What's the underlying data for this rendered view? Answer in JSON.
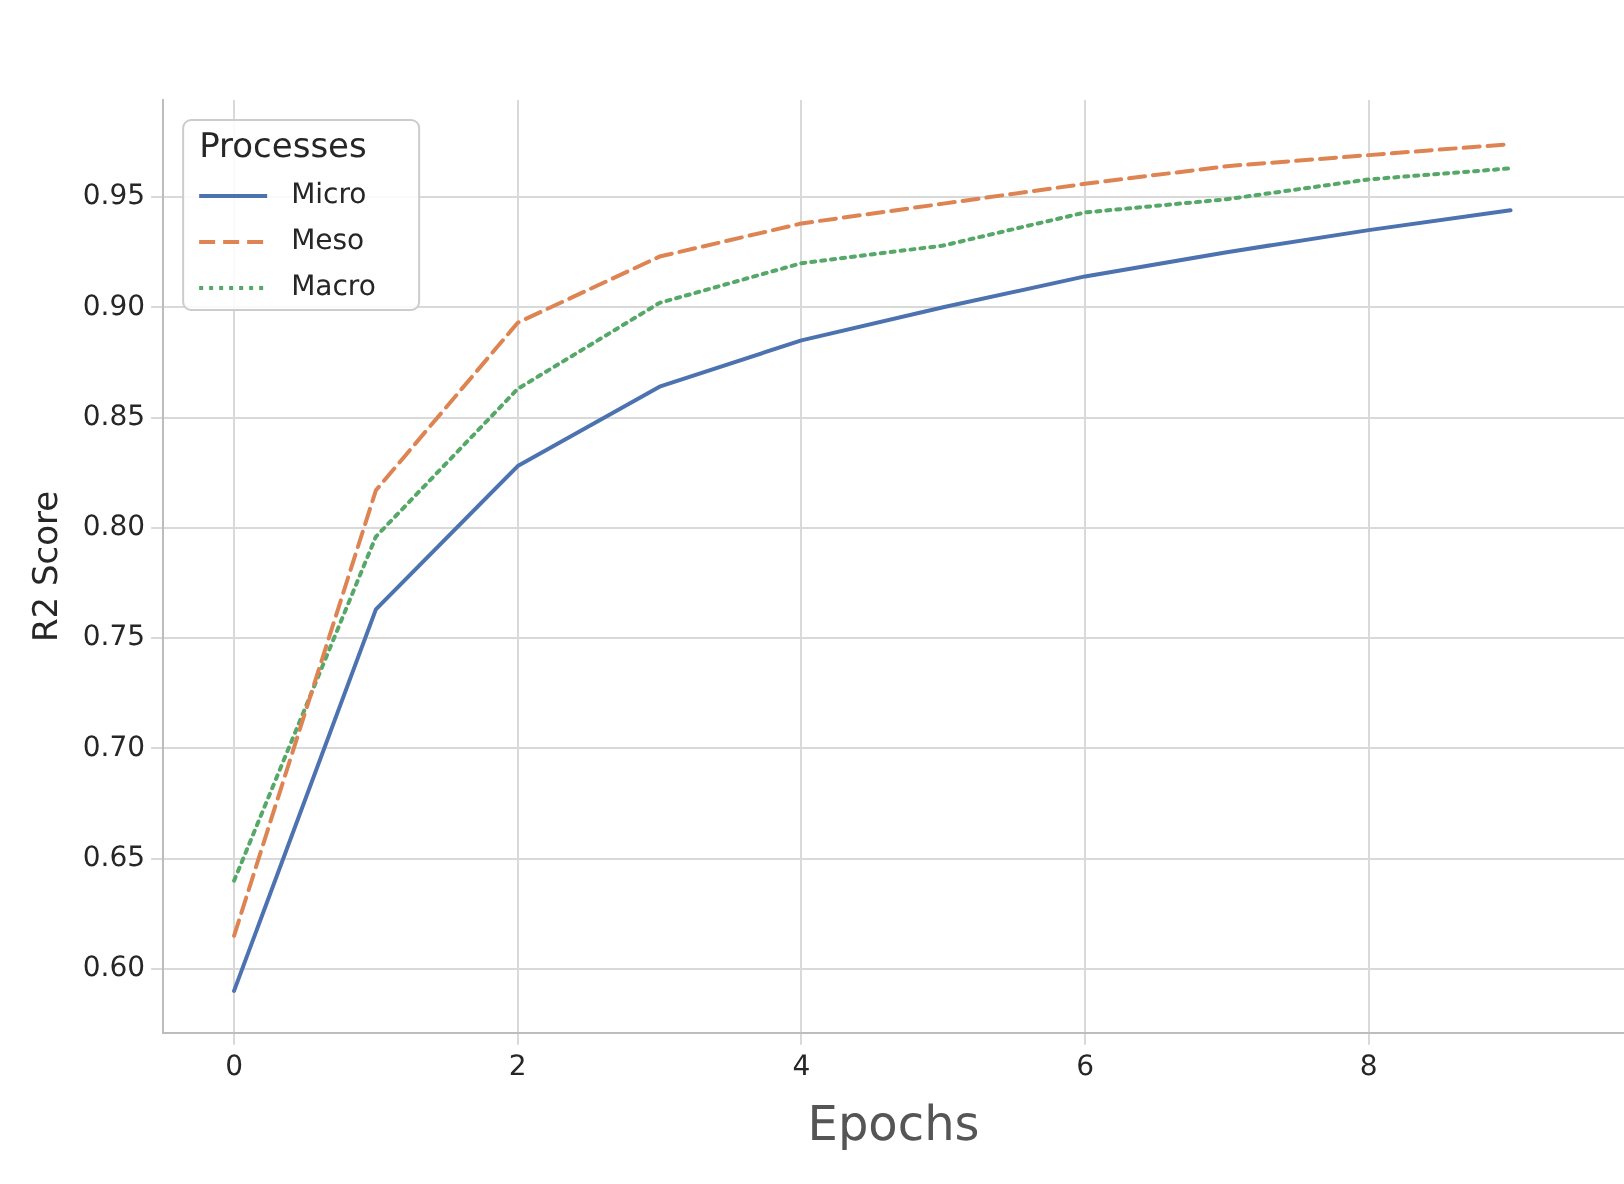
{
  "chart_data": {
    "type": "line",
    "xlabel": "Epochs",
    "ylabel": "R2 Score",
    "legend_title": "Processes",
    "legend": "top left",
    "grid": true,
    "marker": "none",
    "x": [
      0,
      1,
      2,
      3,
      4,
      5,
      6,
      7,
      8,
      9
    ],
    "xlim": [
      -0.5,
      9.8
    ],
    "xticks": [
      0,
      2,
      4,
      6,
      8
    ],
    "ylim": [
      0.571,
      0.994
    ],
    "yticks": [
      {
        "value": 0.6,
        "label": "0.60"
      },
      {
        "value": 0.65,
        "label": "0.65"
      },
      {
        "value": 0.7,
        "label": "0.70"
      },
      {
        "value": 0.75,
        "label": "0.75"
      },
      {
        "value": 0.8,
        "label": "0.80"
      },
      {
        "value": 0.85,
        "label": "0.85"
      },
      {
        "value": 0.9,
        "label": "0.90"
      },
      {
        "value": 0.95,
        "label": "0.95"
      }
    ],
    "series": [
      {
        "name": "Micro",
        "color": "#4c72b0",
        "line_style": "solid",
        "values": [
          0.59,
          0.763,
          0.828,
          0.864,
          0.885,
          0.9,
          0.914,
          0.925,
          0.935,
          0.944
        ]
      },
      {
        "name": "Meso",
        "color": "#dd8452",
        "line_style": "dashed",
        "values": [
          0.615,
          0.817,
          0.893,
          0.923,
          0.938,
          0.947,
          0.956,
          0.964,
          0.969,
          0.974
        ]
      },
      {
        "name": "Macro",
        "color": "#55a868",
        "line_style": "dotted",
        "values": [
          0.64,
          0.796,
          0.863,
          0.902,
          0.92,
          0.928,
          0.943,
          0.949,
          0.958,
          0.963
        ]
      }
    ]
  }
}
